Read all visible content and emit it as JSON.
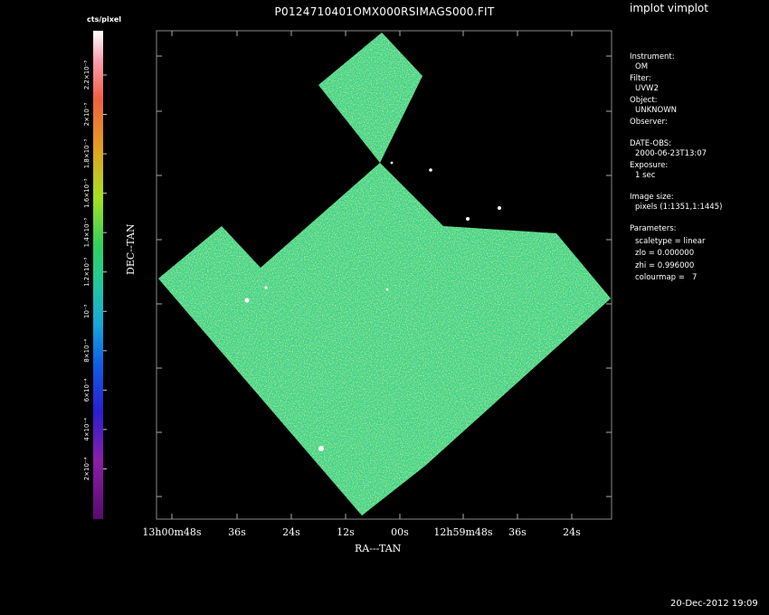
{
  "header": {
    "title": "P0124710401OMX000RSIMAGS000.FIT",
    "app_title": "implot vimplot",
    "datestamp": "20-Dec-2012 19:09"
  },
  "info": {
    "instrument_label": "Instrument:",
    "instrument": "OM",
    "filter_label": "Filter:",
    "filter": "UVW2",
    "object_label": "Object:",
    "object": "UNKNOWN",
    "observer_label": "Observer:",
    "date_obs_label": "DATE-OBS:",
    "date_obs": "2000-06-23T13:07",
    "exposure_label": "Exposure:",
    "exposure": "1 sec",
    "image_size_label": "Image size:",
    "image_size": "pixels (1:1351,1:1445)",
    "parameters_label": "Parameters:",
    "scaletype": "scaletype = linear",
    "zlo": "zlo = 0.000000",
    "zhi": "zhi = 0.996000",
    "colourmap": "colourmap =   7"
  },
  "chart_data": {
    "type": "heatmap",
    "title": "P0124710401OMX000RSIMAGS000.FIT",
    "xlabel": "RA---TAN",
    "ylabel": "DEC--TAN",
    "x_ticks": [
      "13h00m48s",
      "36s",
      "24s",
      "12s",
      "00s",
      "12h59m48s",
      "36s",
      "24s"
    ],
    "colorbar": {
      "unit": "cts/pixel",
      "ticks": [
        "2×10⁻⁴",
        "4×10⁻⁴",
        "6×10⁻⁴",
        "8×10⁻⁴",
        "10⁻³",
        "1.2×10⁻³",
        "1.4×10⁻³",
        "1.6×10⁻³",
        "1.8×10⁻³",
        "2×10⁻³",
        "2.2×10⁻³"
      ],
      "colors": [
        "#5a0a6e",
        "#8a1fa8",
        "#2a1fd0",
        "#1060e8",
        "#18a8d8",
        "#20c8a0",
        "#30d060",
        "#a8e020",
        "#e0a020",
        "#f06040",
        "#f8a0b0",
        "#ffffff"
      ]
    },
    "image_colors": {
      "base": "#34d86a",
      "low": "#1c8fd6",
      "high": "#c9e23a",
      "source": "#ffffff"
    }
  }
}
